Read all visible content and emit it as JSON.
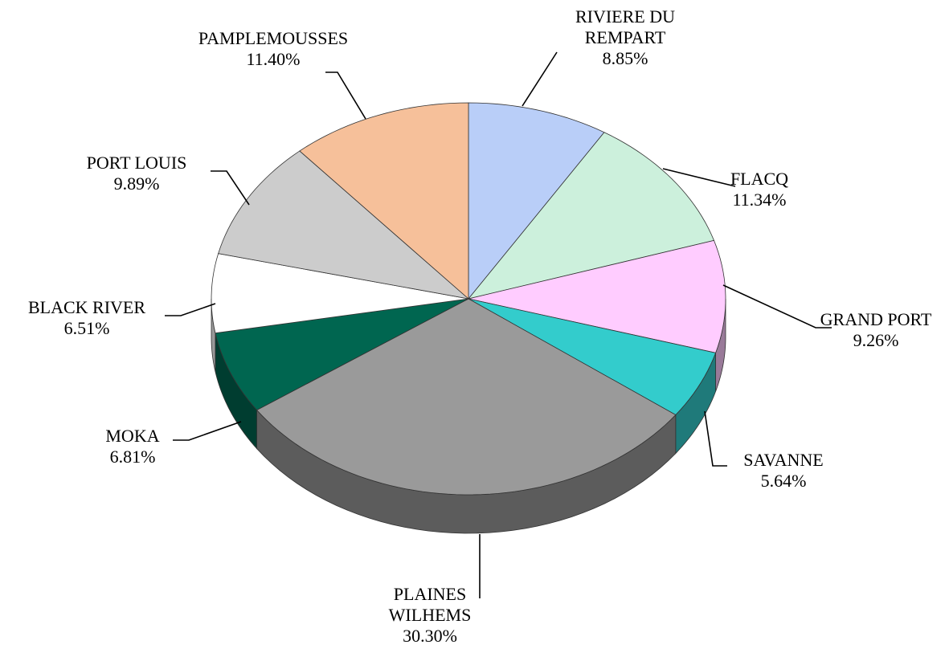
{
  "chart_data": {
    "type": "pie3d",
    "categories": [
      "RIVIERE DU REMPART",
      "FLACQ",
      "GRAND PORT",
      "SAVANNE",
      "PLAINES WILHEMS",
      "MOKA",
      "BLACK RIVER",
      "PORT LOUIS",
      "PAMPLEMOUSSES"
    ],
    "values": [
      8.85,
      11.34,
      9.26,
      5.64,
      30.3,
      6.81,
      6.51,
      9.89,
      11.4
    ],
    "value_labels": [
      "8.85%",
      "11.34%",
      "9.26%",
      "5.64%",
      "30.30%",
      "6.81%",
      "6.51%",
      "9.89%",
      "11.40%"
    ],
    "colors": [
      "#b9cef8",
      "#ccf0dc",
      "#ffccff",
      "#33cccc",
      "#9a9a9a",
      "#006650",
      "#ffffff",
      "#cccccc",
      "#f6c09a"
    ]
  }
}
